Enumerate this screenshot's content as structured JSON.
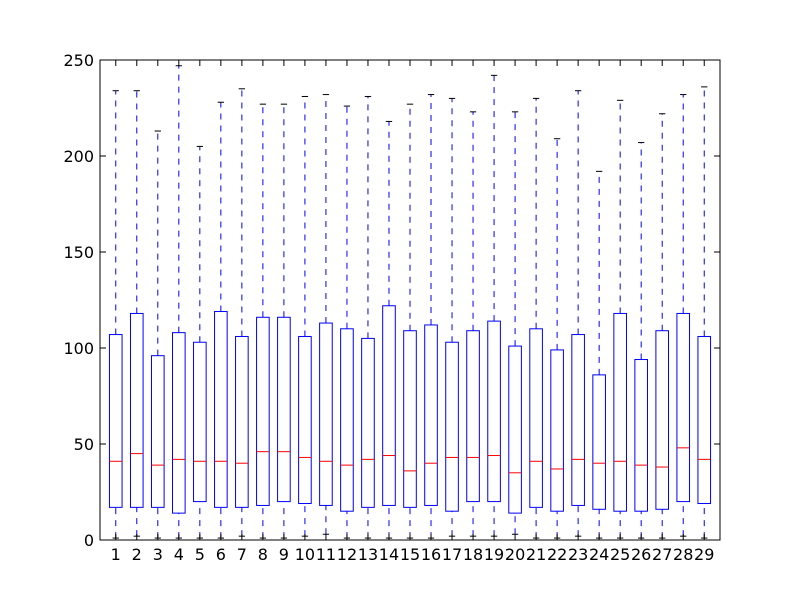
{
  "chart_data": {
    "type": "box",
    "title": "",
    "xlabel": "",
    "ylabel": "",
    "ylim": [
      0,
      250
    ],
    "yticks": [
      0,
      50,
      100,
      150,
      200,
      250
    ],
    "grid": false,
    "colors": {
      "box": "#0000ff",
      "median": "#ff0000",
      "whisker": "#0000ff",
      "cap": "#000000"
    },
    "categories": [
      "1",
      "2",
      "3",
      "4",
      "5",
      "6",
      "7",
      "8",
      "9",
      "10",
      "11",
      "12",
      "13",
      "14",
      "15",
      "16",
      "17",
      "18",
      "19",
      "20",
      "21",
      "22",
      "23",
      "24",
      "25",
      "26",
      "27",
      "28",
      "29"
    ],
    "boxes": [
      {
        "label": "1",
        "whislo": 1,
        "q1": 17,
        "med": 41,
        "q3": 107,
        "whishi": 234
      },
      {
        "label": "2",
        "whislo": 2,
        "q1": 17,
        "med": 45,
        "q3": 118,
        "whishi": 234
      },
      {
        "label": "3",
        "whislo": 1,
        "q1": 17,
        "med": 39,
        "q3": 96,
        "whishi": 213
      },
      {
        "label": "4",
        "whislo": 1,
        "q1": 14,
        "med": 42,
        "q3": 108,
        "whishi": 247
      },
      {
        "label": "5",
        "whislo": 1,
        "q1": 20,
        "med": 41,
        "q3": 103,
        "whishi": 205
      },
      {
        "label": "6",
        "whislo": 1,
        "q1": 17,
        "med": 41,
        "q3": 119,
        "whishi": 228
      },
      {
        "label": "7",
        "whislo": 2,
        "q1": 17,
        "med": 40,
        "q3": 106,
        "whishi": 235
      },
      {
        "label": "8",
        "whislo": 1,
        "q1": 18,
        "med": 46,
        "q3": 116,
        "whishi": 227
      },
      {
        "label": "9",
        "whislo": 1,
        "q1": 20,
        "med": 46,
        "q3": 116,
        "whishi": 227
      },
      {
        "label": "10",
        "whislo": 2,
        "q1": 19,
        "med": 43,
        "q3": 106,
        "whishi": 231
      },
      {
        "label": "11",
        "whislo": 3,
        "q1": 18,
        "med": 41,
        "q3": 113,
        "whishi": 232
      },
      {
        "label": "12",
        "whislo": 1,
        "q1": 15,
        "med": 39,
        "q3": 110,
        "whishi": 226
      },
      {
        "label": "13",
        "whislo": 1,
        "q1": 17,
        "med": 42,
        "q3": 105,
        "whishi": 231
      },
      {
        "label": "14",
        "whislo": 1,
        "q1": 18,
        "med": 44,
        "q3": 122,
        "whishi": 218
      },
      {
        "label": "15",
        "whislo": 1,
        "q1": 17,
        "med": 36,
        "q3": 109,
        "whishi": 227
      },
      {
        "label": "16",
        "whislo": 1,
        "q1": 18,
        "med": 40,
        "q3": 112,
        "whishi": 232
      },
      {
        "label": "17",
        "whislo": 2,
        "q1": 15,
        "med": 43,
        "q3": 103,
        "whishi": 230
      },
      {
        "label": "18",
        "whislo": 2,
        "q1": 20,
        "med": 43,
        "q3": 109,
        "whishi": 223
      },
      {
        "label": "19",
        "whislo": 2,
        "q1": 20,
        "med": 44,
        "q3": 114,
        "whishi": 242
      },
      {
        "label": "20",
        "whislo": 3,
        "q1": 14,
        "med": 35,
        "q3": 101,
        "whishi": 223
      },
      {
        "label": "21",
        "whislo": 1,
        "q1": 17,
        "med": 41,
        "q3": 110,
        "whishi": 230
      },
      {
        "label": "22",
        "whislo": 1,
        "q1": 15,
        "med": 37,
        "q3": 99,
        "whishi": 209
      },
      {
        "label": "23",
        "whislo": 2,
        "q1": 18,
        "med": 42,
        "q3": 107,
        "whishi": 234
      },
      {
        "label": "24",
        "whislo": 1,
        "q1": 16,
        "med": 40,
        "q3": 86,
        "whishi": 192
      },
      {
        "label": "25",
        "whislo": 1,
        "q1": 15,
        "med": 41,
        "q3": 118,
        "whishi": 229
      },
      {
        "label": "26",
        "whislo": 1,
        "q1": 15,
        "med": 39,
        "q3": 94,
        "whishi": 207
      },
      {
        "label": "27",
        "whislo": 1,
        "q1": 16,
        "med": 38,
        "q3": 109,
        "whishi": 222
      },
      {
        "label": "28",
        "whislo": 2,
        "q1": 20,
        "med": 48,
        "q3": 118,
        "whishi": 232
      },
      {
        "label": "29",
        "whislo": 1,
        "q1": 19,
        "med": 42,
        "q3": 106,
        "whishi": 236
      }
    ]
  }
}
